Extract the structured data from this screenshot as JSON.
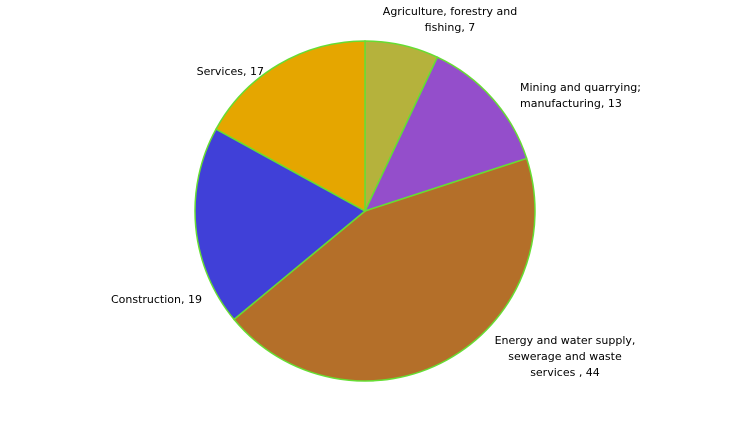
{
  "chart_data": {
    "type": "pie",
    "title": "",
    "slices": [
      {
        "label_lines": [
          "Agriculture, forestry and",
          "fishing, 7"
        ],
        "value": 7,
        "color": "#b5b23c"
      },
      {
        "label_lines": [
          "Mining and quarrying;",
          "manufacturing, 13"
        ],
        "value": 13,
        "color": "#944ecb"
      },
      {
        "label_lines": [
          "Energy and water supply,",
          "sewerage and waste",
          "services , 44"
        ],
        "value": 44,
        "color": "#b46f29"
      },
      {
        "label_lines": [
          "Construction, 19"
        ],
        "value": 19,
        "color": "#4040d8"
      },
      {
        "label_lines": [
          "Services, 17"
        ],
        "value": 17,
        "color": "#e5a600"
      }
    ]
  }
}
